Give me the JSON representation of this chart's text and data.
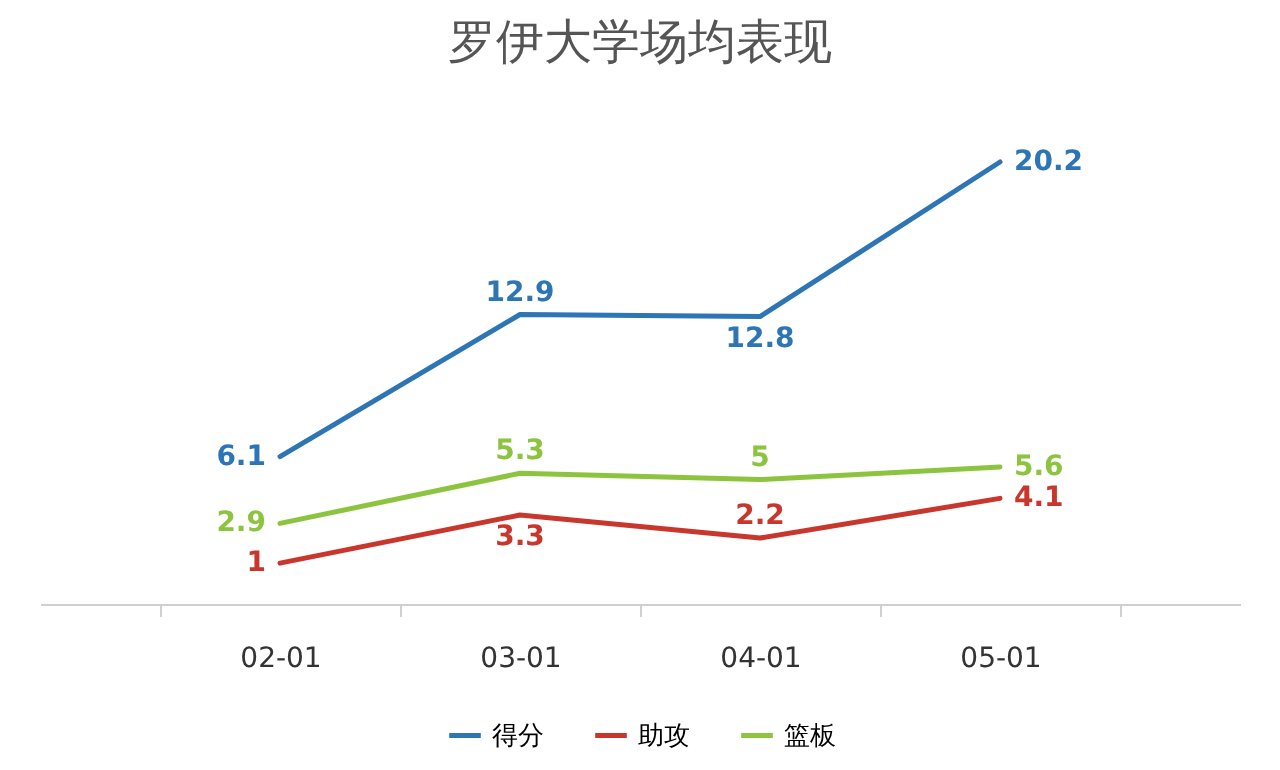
{
  "chart_data": {
    "type": "line",
    "title": "罗伊大学场均表现",
    "categories": [
      "02-01",
      "03-01",
      "04-01",
      "05-01"
    ],
    "series": [
      {
        "name": "得分",
        "color": "#2e75b6",
        "values": [
          6.1,
          12.9,
          12.8,
          20.2
        ]
      },
      {
        "name": "助攻",
        "color": "#c9372c",
        "values": [
          1,
          3.3,
          2.2,
          4.1
        ]
      },
      {
        "name": "篮板",
        "color": "#8dc43f",
        "values": [
          2.9,
          5.3,
          5,
          5.6
        ]
      }
    ],
    "data_labels": true,
    "legend": "bottom",
    "tick_labels": "x"
  }
}
